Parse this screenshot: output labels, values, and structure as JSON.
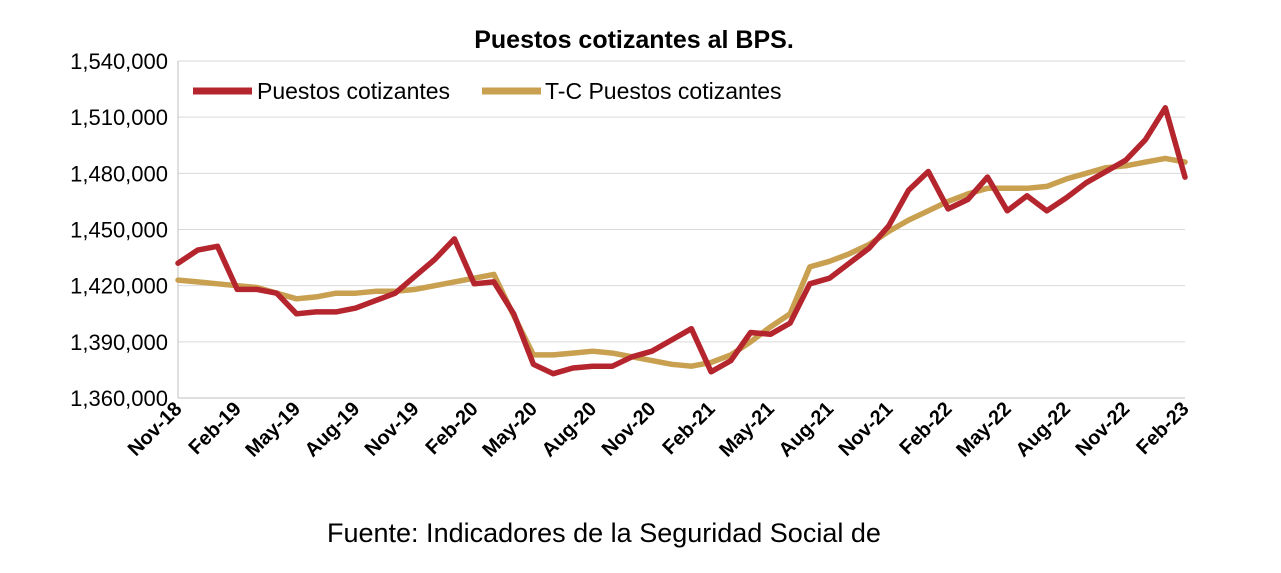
{
  "chart_data": {
    "type": "line",
    "title": "Puestos cotizantes al BPS.",
    "xlabel": "",
    "ylabel": "",
    "ylim": [
      1360000,
      1540000
    ],
    "y_ticks": [
      "1,360,000",
      "1,390,000",
      "1,420,000",
      "1,450,000",
      "1,480,000",
      "1,510,000",
      "1,540,000"
    ],
    "y_tick_values": [
      1360000,
      1390000,
      1420000,
      1450000,
      1480000,
      1510000,
      1540000
    ],
    "x": [
      "Nov-18",
      "Dec-18",
      "Jan-19",
      "Feb-19",
      "Mar-19",
      "Apr-19",
      "May-19",
      "Jun-19",
      "Jul-19",
      "Aug-19",
      "Sep-19",
      "Oct-19",
      "Nov-19",
      "Dec-19",
      "Jan-20",
      "Feb-20",
      "Mar-20",
      "Apr-20",
      "May-20",
      "Jun-20",
      "Jul-20",
      "Aug-20",
      "Sep-20",
      "Oct-20",
      "Nov-20",
      "Dec-20",
      "Jan-21",
      "Feb-21",
      "Mar-21",
      "Apr-21",
      "May-21",
      "Jun-21",
      "Jul-21",
      "Aug-21",
      "Sep-21",
      "Oct-21",
      "Nov-21",
      "Dec-21",
      "Jan-22",
      "Feb-22",
      "Mar-22",
      "Apr-22",
      "May-22",
      "Jun-22",
      "Jul-22",
      "Aug-22",
      "Sep-22",
      "Oct-22",
      "Nov-22",
      "Dec-22",
      "Jan-23",
      "Feb-23"
    ],
    "x_tick_labels": [
      "Nov-18",
      "Feb-19",
      "May-19",
      "Aug-19",
      "Nov-19",
      "Feb-20",
      "May-20",
      "Aug-20",
      "Nov-20",
      "Feb-21",
      "May-21",
      "Aug-21",
      "Nov-21",
      "Feb-22",
      "May-22",
      "Aug-22",
      "Nov-22",
      "Feb-23"
    ],
    "series": [
      {
        "name": "Puestos cotizantes",
        "color": "#b5252e",
        "values": [
          1432000,
          1439000,
          1441000,
          1418000,
          1418000,
          1416000,
          1405000,
          1406000,
          1406000,
          1408000,
          1412000,
          1416000,
          1425000,
          1434000,
          1445000,
          1421000,
          1422000,
          1405000,
          1378000,
          1373000,
          1376000,
          1377000,
          1377000,
          1382000,
          1385000,
          1391000,
          1397000,
          1374000,
          1380000,
          1395000,
          1394000,
          1400000,
          1421000,
          1424000,
          1432000,
          1440000,
          1452000,
          1471000,
          1481000,
          1461000,
          1466000,
          1478000,
          1460000,
          1468000,
          1460000,
          1467000,
          1475000,
          1481000,
          1487000,
          1498000,
          1515000,
          1478000
        ]
      },
      {
        "name": "T-C Puestos cotizantes",
        "color": "#c8a050",
        "values": [
          1423000,
          1422000,
          1421000,
          1420000,
          1419000,
          1416000,
          1413000,
          1414000,
          1416000,
          1416000,
          1417000,
          1417000,
          1418000,
          1420000,
          1422000,
          1424000,
          1426000,
          1404000,
          1383000,
          1383000,
          1384000,
          1385000,
          1384000,
          1382000,
          1380000,
          1378000,
          1377000,
          1379000,
          1383000,
          1390000,
          1398000,
          1405000,
          1430000,
          1433000,
          1437000,
          1442000,
          1449000,
          1455000,
          1460000,
          1465000,
          1469000,
          1472000,
          1472000,
          1472000,
          1473000,
          1477000,
          1480000,
          1483000,
          1484000,
          1486000,
          1488000,
          1486000
        ]
      }
    ],
    "legend_position": "top-left",
    "grid": true
  },
  "source_text": "Fuente: Indicadores de la Seguridad Social de"
}
